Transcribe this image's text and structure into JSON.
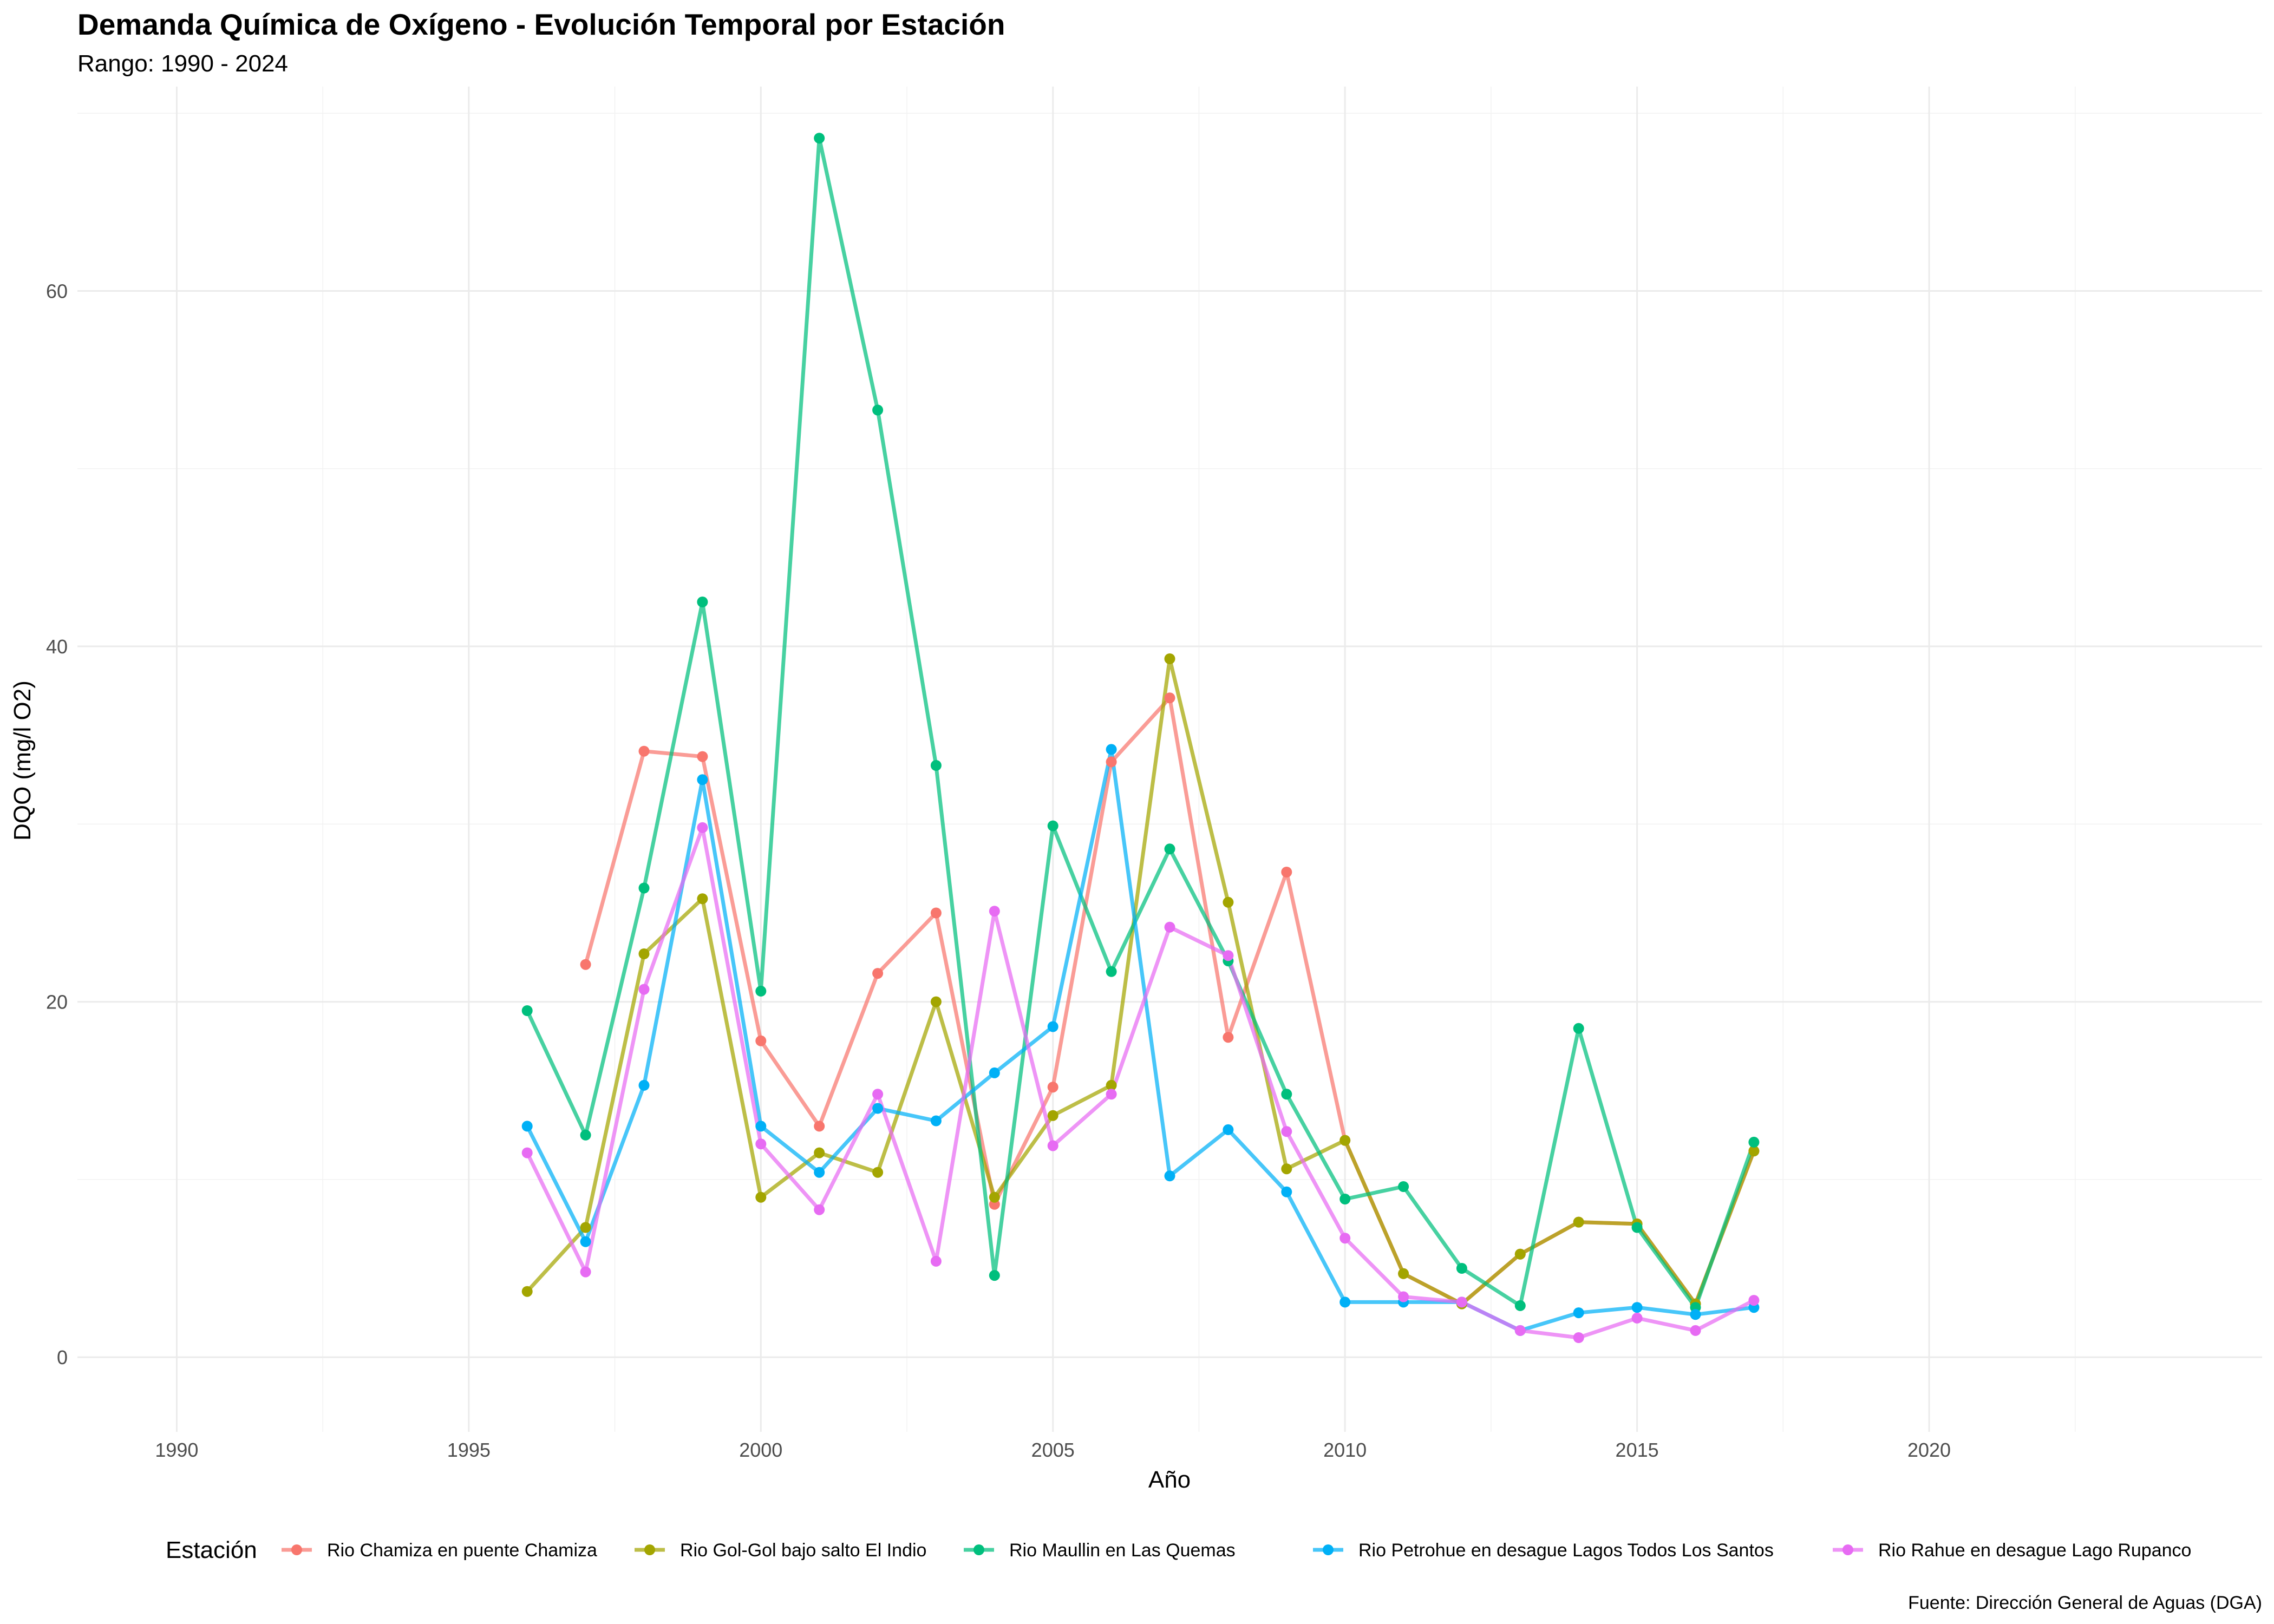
{
  "chart_data": {
    "type": "line",
    "title": "Demanda Química de Oxígeno - Evolución Temporal por Estación",
    "subtitle": "Rango: 1990 - 2024",
    "xlabel": "Año",
    "ylabel": "DQO (mg/l O2)",
    "caption": "Fuente: Dirección General de Aguas (DGA)",
    "xlim": [
      1988.3,
      2025.7
    ],
    "ylim": [
      -4.2,
      71.5
    ],
    "xticks": [
      1990,
      1995,
      2000,
      2005,
      2010,
      2015,
      2020
    ],
    "yticks": [
      0,
      20,
      40,
      60
    ],
    "grid": true,
    "legend_title": "Estación",
    "legend_position": "bottom",
    "series": [
      {
        "name": "Rio Chamiza en puente Chamiza",
        "color": "#F8766D",
        "x": [
          1997,
          1998,
          1999,
          2000,
          2001,
          2002,
          2003,
          2004,
          2005,
          2006,
          2007,
          2008,
          2009,
          2010,
          2011,
          2012,
          2013,
          2014,
          2015,
          2016,
          2017
        ],
        "y": [
          22.1,
          34.1,
          33.8,
          17.8,
          13.0,
          21.6,
          25.0,
          8.6,
          15.2,
          33.5,
          37.1,
          18.0,
          27.3,
          12.2,
          4.7,
          3.0,
          5.8,
          7.6,
          7.5,
          3.0,
          11.6
        ]
      },
      {
        "name": "Rio Gol-Gol bajo salto El Indio",
        "color": "#A3A500",
        "x": [
          1996,
          1997,
          1998,
          1999,
          2000,
          2001,
          2002,
          2003,
          2004,
          2005,
          2006,
          2007,
          2008,
          2009,
          2010,
          2011,
          2012,
          2013,
          2014,
          2015,
          2016,
          2017
        ],
        "y": [
          3.7,
          7.3,
          22.7,
          25.8,
          9.0,
          11.5,
          10.4,
          20.0,
          9.0,
          13.6,
          15.3,
          39.3,
          25.6,
          10.6,
          12.2,
          4.7,
          3.0,
          5.8,
          7.6,
          7.5,
          3.0,
          11.6
        ]
      },
      {
        "name": "Rio Maullin en Las Quemas",
        "color": "#00BF7D",
        "x": [
          1996,
          1997,
          1998,
          1999,
          2000,
          2001,
          2002,
          2003,
          2004,
          2005,
          2006,
          2007,
          2008,
          2009,
          2010,
          2011,
          2012,
          2013,
          2014,
          2015,
          2016,
          2017
        ],
        "y": [
          19.5,
          12.5,
          26.4,
          42.5,
          20.6,
          68.6,
          53.3,
          33.3,
          4.6,
          29.9,
          21.7,
          28.6,
          22.3,
          14.8,
          8.9,
          9.6,
          5.0,
          2.9,
          18.5,
          7.3,
          2.8,
          12.1
        ]
      },
      {
        "name": "Rio Petrohue en desague Lagos Todos Los Santos",
        "color": "#00B0F6",
        "x": [
          1996,
          1997,
          1998,
          1999,
          2000,
          2001,
          2002,
          2003,
          2004,
          2005,
          2006,
          2007,
          2008,
          2009,
          2010,
          2011,
          2012,
          2013,
          2014,
          2015,
          2016,
          2017
        ],
        "y": [
          13.0,
          6.5,
          15.3,
          32.5,
          13.0,
          10.4,
          14.0,
          13.3,
          16.0,
          18.6,
          34.2,
          10.2,
          12.8,
          9.3,
          3.1,
          3.1,
          3.1,
          1.5,
          2.5,
          2.8,
          2.4,
          2.8
        ]
      },
      {
        "name": "Rio Rahue en desague Lago Rupanco",
        "color": "#E76BF3",
        "x": [
          1996,
          1997,
          1998,
          1999,
          2000,
          2001,
          2002,
          2003,
          2004,
          2005,
          2006,
          2007,
          2008,
          2009,
          2010,
          2011,
          2012,
          2013,
          2014,
          2015,
          2016,
          2017
        ],
        "y": [
          11.5,
          4.8,
          20.7,
          29.8,
          12.0,
          8.3,
          14.8,
          5.4,
          25.1,
          11.9,
          14.8,
          24.2,
          22.6,
          12.7,
          6.7,
          3.4,
          3.1,
          1.5,
          1.1,
          2.2,
          1.5,
          3.2
        ]
      }
    ]
  }
}
